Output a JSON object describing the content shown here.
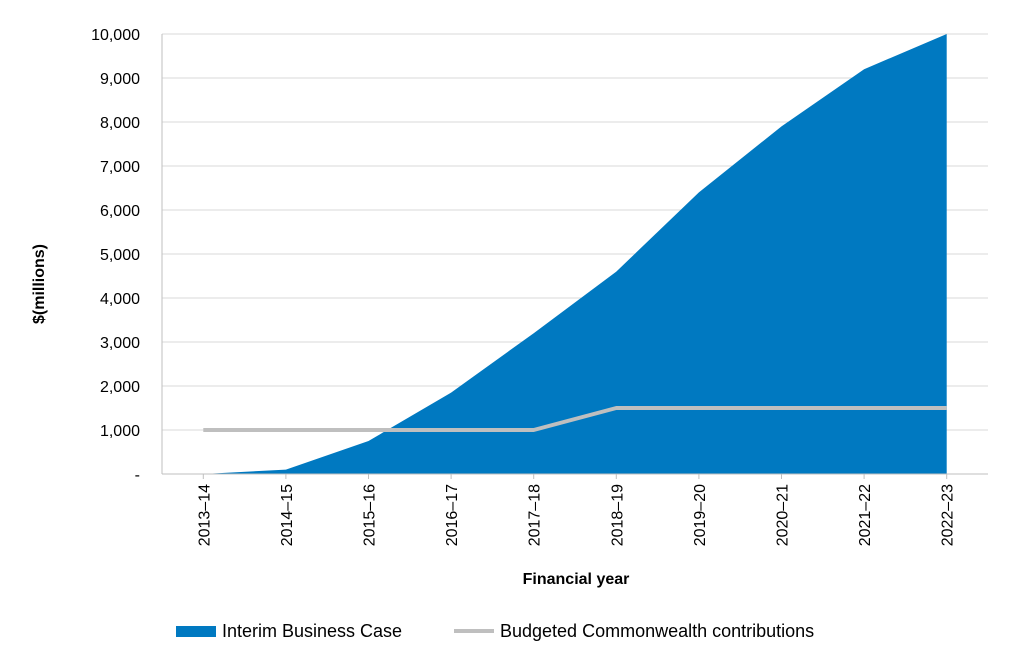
{
  "chart_data": {
    "type": "area",
    "categories": [
      "2013–14",
      "2014–15",
      "2015–16",
      "2016–17",
      "2017–18",
      "2018–19",
      "2019–20",
      "2020–21",
      "2021–22",
      "2022–23"
    ],
    "series": [
      {
        "name": "Interim Business Case",
        "kind": "area",
        "color": "#0079C1",
        "values": [
          0,
          100,
          750,
          1850,
          3200,
          4600,
          6400,
          7900,
          9200,
          10000
        ]
      },
      {
        "name": "Budgeted Commonwealth contributions",
        "kind": "line",
        "color": "#BFBFBF",
        "values": [
          1000,
          1000,
          1000,
          1000,
          1000,
          1500,
          1500,
          1500,
          1500,
          1500
        ]
      }
    ],
    "xlabel": "Financial year",
    "ylabel": "$(millions)",
    "ylim": [
      0,
      10000
    ],
    "yticks": [
      0,
      1000,
      2000,
      3000,
      4000,
      5000,
      6000,
      7000,
      8000,
      9000,
      10000
    ],
    "ytick_labels": [
      "-",
      "1,000",
      "2,000",
      "3,000",
      "4,000",
      "5,000",
      "6,000",
      "7,000",
      "8,000",
      "9,000",
      "10,000"
    ],
    "grid": "horizontal",
    "legend_position": "bottom"
  }
}
